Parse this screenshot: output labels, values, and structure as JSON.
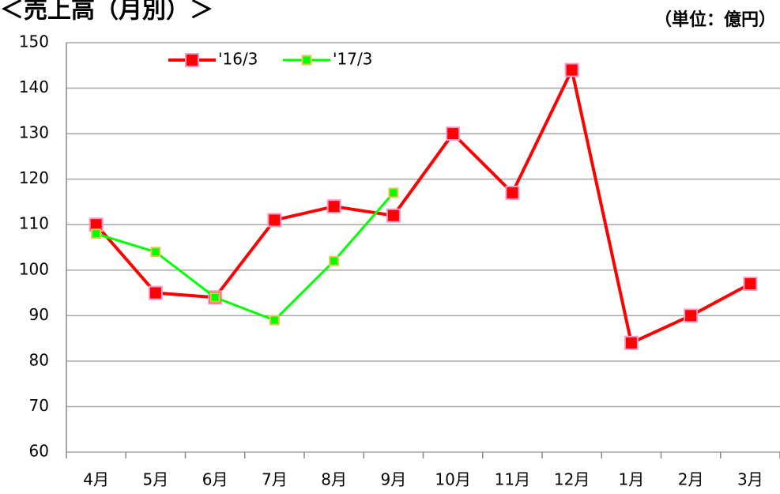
{
  "chart_data": {
    "type": "line",
    "title": "＜売上高（月別）＞",
    "annotations": [
      "（単位：億円）"
    ],
    "categories": [
      "4月",
      "5月",
      "6月",
      "7月",
      "8月",
      "9月",
      "10月",
      "11月",
      "12月",
      "1月",
      "2月",
      "3月"
    ],
    "series": [
      {
        "name": "'16/3",
        "color": "#ff0000",
        "values": [
          110,
          95,
          94,
          111,
          114,
          112,
          130,
          117,
          144,
          84,
          90,
          97
        ]
      },
      {
        "name": "'17/3",
        "color": "#00ff00",
        "values": [
          108,
          104,
          94,
          89,
          102,
          117,
          null,
          null,
          null,
          null,
          null,
          null
        ]
      }
    ],
    "ylim": [
      60,
      150
    ],
    "yticks": [
      60,
      70,
      80,
      90,
      100,
      110,
      120,
      130,
      140,
      150
    ],
    "grid": true,
    "legend": "top"
  }
}
